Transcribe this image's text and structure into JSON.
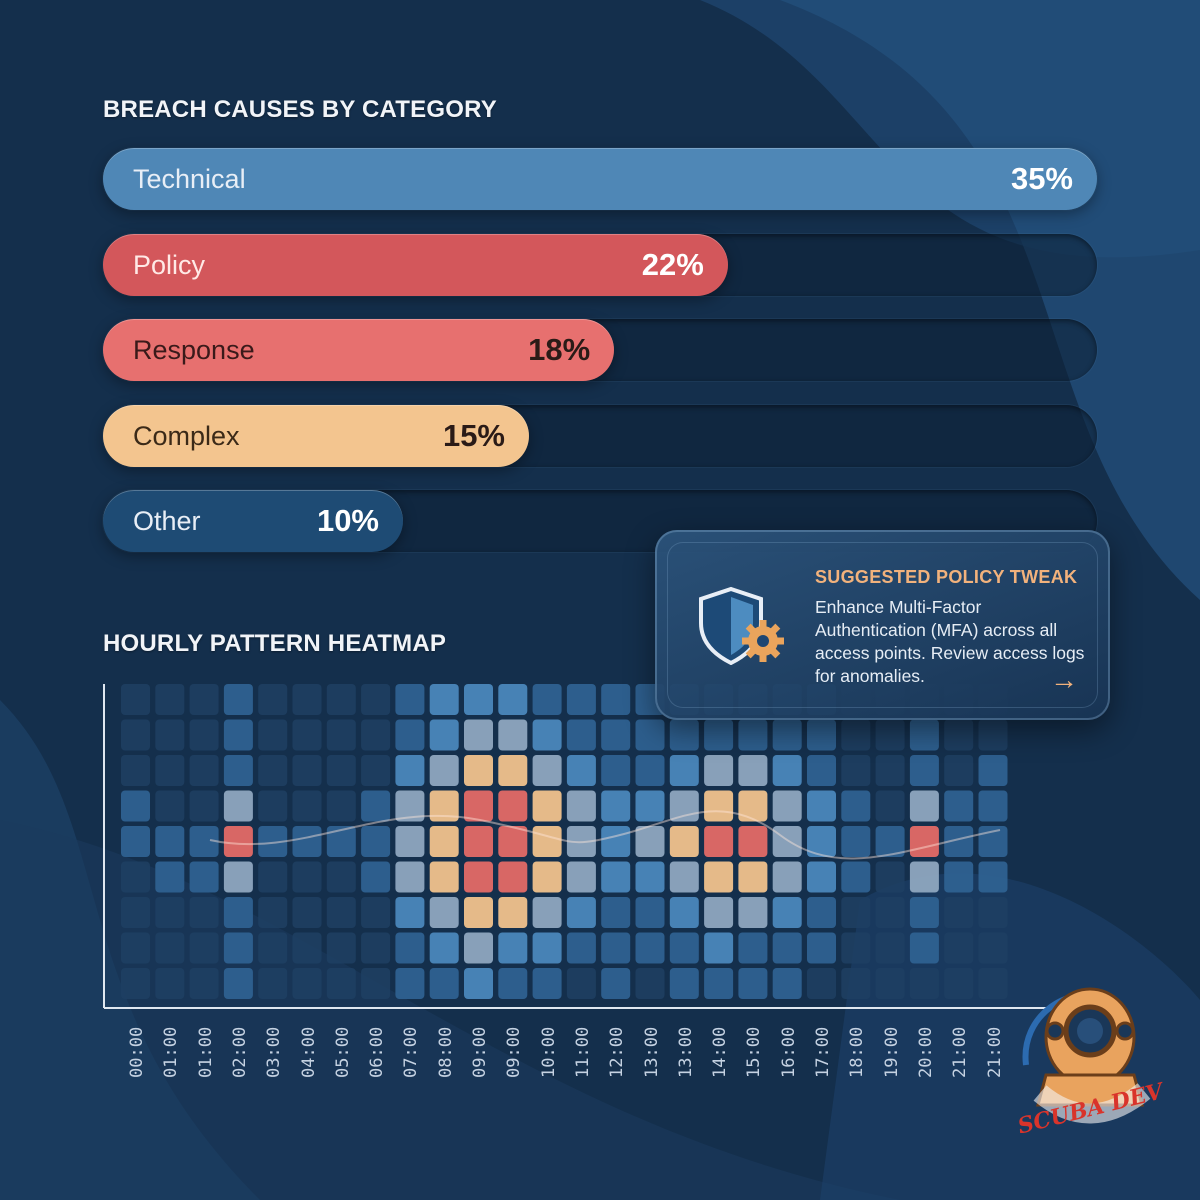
{
  "chart_data": [
    {
      "type": "bar",
      "title": "BREACH CAUSES BY CATEGORY",
      "orientation": "horizontal",
      "categories": [
        "Technical",
        "Policy",
        "Response",
        "Complex",
        "Other"
      ],
      "values": [
        35,
        22,
        18,
        15,
        10
      ],
      "value_labels": [
        "35%",
        "22%",
        "18%",
        "15%",
        "10%"
      ],
      "xlim": [
        0,
        35
      ],
      "colors": [
        "#4f87b6",
        "#d3575b",
        "#e7706f",
        "#f3c58f",
        "#1e4b74"
      ]
    },
    {
      "type": "heatmap",
      "title": "HOURLY PATTERN HEATMAP",
      "x": [
        "00:00",
        "01:00",
        "01:00",
        "02:00",
        "03:00",
        "04:00",
        "05:00",
        "06:00",
        "07:00",
        "08:00",
        "09:00",
        "09:00",
        "10:00",
        "11:00",
        "12:00",
        "13:00",
        "13:00",
        "14:00",
        "15:00",
        "16:00",
        "17:00",
        "18:00",
        "19:00",
        "20:00",
        "21:00",
        "21:00"
      ],
      "rows": 9,
      "intensity": [
        [
          0,
          0,
          0,
          1,
          0,
          0,
          0,
          0,
          1,
          2,
          2,
          2,
          1,
          1,
          1,
          1,
          1,
          1,
          1,
          1,
          1,
          0,
          0,
          0,
          0,
          0
        ],
        [
          0,
          0,
          0,
          1,
          0,
          0,
          0,
          0,
          1,
          2,
          3,
          3,
          2,
          1,
          1,
          1,
          1,
          1,
          1,
          1,
          1,
          0,
          0,
          1,
          0,
          0
        ],
        [
          0,
          0,
          0,
          1,
          0,
          0,
          0,
          0,
          2,
          3,
          4,
          4,
          3,
          2,
          1,
          1,
          2,
          3,
          3,
          2,
          1,
          0,
          0,
          1,
          0,
          1
        ],
        [
          1,
          0,
          0,
          3,
          0,
          0,
          0,
          1,
          3,
          4,
          5,
          5,
          4,
          3,
          2,
          2,
          3,
          4,
          4,
          3,
          2,
          1,
          0,
          3,
          1,
          1
        ],
        [
          1,
          1,
          1,
          5,
          1,
          1,
          1,
          1,
          3,
          4,
          5,
          5,
          4,
          3,
          2,
          3,
          4,
          5,
          5,
          3,
          2,
          1,
          1,
          5,
          1,
          1
        ],
        [
          0,
          1,
          1,
          3,
          0,
          0,
          0,
          1,
          3,
          4,
          5,
          5,
          4,
          3,
          2,
          2,
          3,
          4,
          4,
          3,
          2,
          1,
          0,
          3,
          1,
          1
        ],
        [
          0,
          0,
          0,
          1,
          0,
          0,
          0,
          0,
          2,
          3,
          4,
          4,
          3,
          2,
          1,
          1,
          2,
          3,
          3,
          2,
          1,
          0,
          0,
          1,
          0,
          0
        ],
        [
          0,
          0,
          0,
          1,
          0,
          0,
          0,
          0,
          1,
          2,
          3,
          2,
          2,
          1,
          1,
          1,
          1,
          2,
          1,
          1,
          1,
          0,
          0,
          1,
          0,
          0
        ],
        [
          0,
          0,
          0,
          1,
          0,
          0,
          0,
          0,
          1,
          1,
          2,
          1,
          1,
          0,
          1,
          0,
          1,
          1,
          1,
          1,
          0,
          0,
          0,
          0,
          0,
          0
        ]
      ],
      "colors": [
        "#1f3f63",
        "#2e6190",
        "#4a87ba",
        "#8ea7bf",
        "#f0c28c",
        "#e36a66"
      ]
    }
  ],
  "callout": {
    "title": "SUGGESTED POLICY TWEAK",
    "body": "Enhance Multi-Factor Authentication (MFA) across all access points. Review access logs for anomalies.",
    "arrow": "→"
  },
  "logo_text": "SCUBA DEV"
}
